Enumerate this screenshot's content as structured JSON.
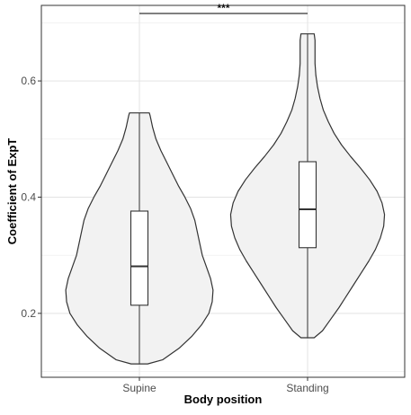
{
  "chart_data": {
    "type": "violin",
    "title": "",
    "xlabel": "Body position",
    "ylabel": "Coefficient of ExpT",
    "categories": [
      "Supine",
      "Standing"
    ],
    "ylim": [
      0.09,
      0.73
    ],
    "yticks": [
      0.2,
      0.4,
      0.6
    ],
    "ytick_labels": [
      "0.2",
      "0.4",
      "0.6"
    ],
    "grid": true,
    "legend": "none",
    "violin_fill": "#f2f2f2",
    "line_color": "#333333",
    "violins": [
      {
        "category": "Supine",
        "min": 0.113,
        "max": 0.545,
        "box": {
          "q1": 0.214,
          "median": 0.281,
          "q3": 0.376
        },
        "profile": [
          [
            0.113,
            0.1
          ],
          [
            0.12,
            0.28
          ],
          [
            0.14,
            0.48
          ],
          [
            0.16,
            0.63
          ],
          [
            0.18,
            0.75
          ],
          [
            0.2,
            0.84
          ],
          [
            0.22,
            0.88
          ],
          [
            0.24,
            0.89
          ],
          [
            0.26,
            0.86
          ],
          [
            0.28,
            0.81
          ],
          [
            0.3,
            0.76
          ],
          [
            0.32,
            0.73
          ],
          [
            0.34,
            0.7
          ],
          [
            0.36,
            0.67
          ],
          [
            0.38,
            0.62
          ],
          [
            0.4,
            0.55
          ],
          [
            0.42,
            0.47
          ],
          [
            0.44,
            0.4
          ],
          [
            0.46,
            0.33
          ],
          [
            0.48,
            0.26
          ],
          [
            0.5,
            0.2
          ],
          [
            0.52,
            0.16
          ],
          [
            0.54,
            0.13
          ],
          [
            0.545,
            0.12
          ]
        ]
      },
      {
        "category": "Standing",
        "min": 0.158,
        "max": 0.681,
        "box": {
          "q1": 0.313,
          "median": 0.379,
          "q3": 0.461
        },
        "profile": [
          [
            0.158,
            0.08
          ],
          [
            0.17,
            0.18
          ],
          [
            0.19,
            0.28
          ],
          [
            0.21,
            0.38
          ],
          [
            0.23,
            0.47
          ],
          [
            0.25,
            0.56
          ],
          [
            0.27,
            0.65
          ],
          [
            0.29,
            0.74
          ],
          [
            0.31,
            0.82
          ],
          [
            0.33,
            0.88
          ],
          [
            0.35,
            0.92
          ],
          [
            0.37,
            0.93
          ],
          [
            0.39,
            0.9
          ],
          [
            0.41,
            0.84
          ],
          [
            0.43,
            0.75
          ],
          [
            0.45,
            0.64
          ],
          [
            0.47,
            0.52
          ],
          [
            0.49,
            0.41
          ],
          [
            0.51,
            0.32
          ],
          [
            0.53,
            0.25
          ],
          [
            0.55,
            0.19
          ],
          [
            0.57,
            0.15
          ],
          [
            0.59,
            0.12
          ],
          [
            0.61,
            0.1
          ],
          [
            0.63,
            0.09
          ],
          [
            0.65,
            0.09
          ],
          [
            0.67,
            0.09
          ],
          [
            0.681,
            0.08
          ]
        ]
      }
    ],
    "annotations": [
      {
        "label": "***",
        "from": "Supine",
        "to": "Standing",
        "y": 0.716
      }
    ]
  }
}
